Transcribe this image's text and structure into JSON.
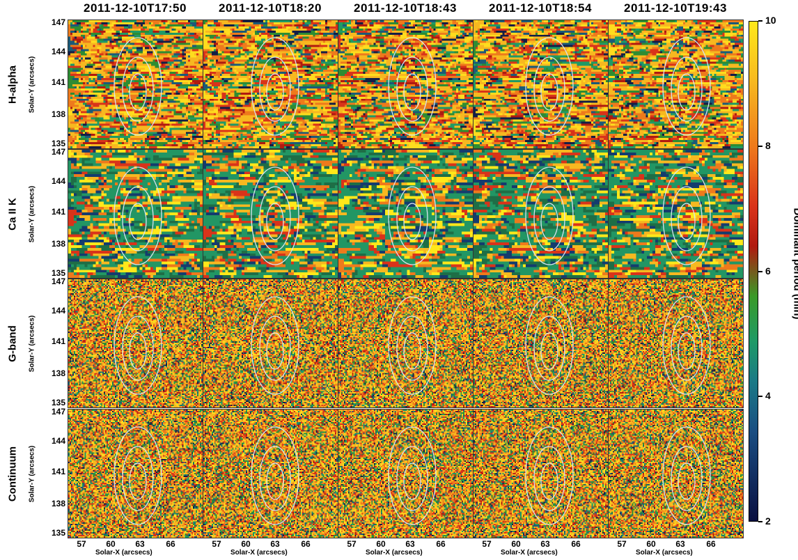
{
  "column_titles": [
    "2011-12-10T17:50",
    "2011-12-10T18:20",
    "2011-12-10T18:43",
    "2011-12-10T18:54",
    "2011-12-10T19:43"
  ],
  "row_labels": [
    "H-alpha",
    "Ca II K",
    "G-band",
    "Continuum"
  ],
  "y_axis_label": "Solar-Y (arcsecs)",
  "x_axis_label": "Solar-X (arcsecs)",
  "y_ticks": [
    "147",
    "144",
    "141",
    "138",
    "135"
  ],
  "x_ticks": [
    "57",
    "60",
    "63",
    "66"
  ],
  "colorbar": {
    "title": "Dominant period (min)",
    "ticks": [
      "10",
      "8",
      "6",
      "4",
      "2"
    ],
    "range": [
      2,
      10
    ]
  },
  "colors": {
    "contour": "#d8e4f0",
    "background": "#ffffff"
  }
}
